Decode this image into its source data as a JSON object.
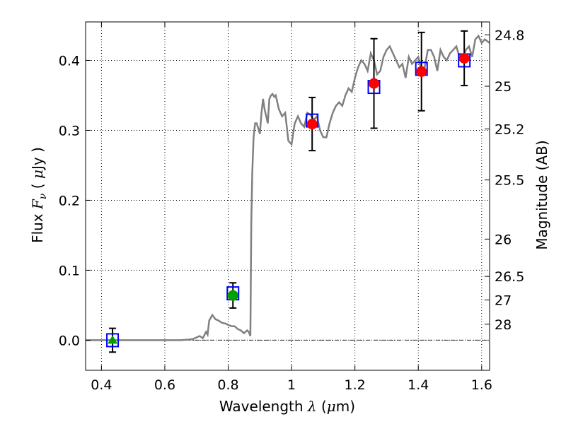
{
  "chart_data": {
    "type": "scatter",
    "xlabel": "Wavelength  λ (μm)",
    "ylabel": "Flux  Fν ( μJy )",
    "ylabel_right": "Magnitude (AB)",
    "xlim": [
      0.35,
      1.625
    ],
    "ylim": [
      -0.043,
      0.455
    ],
    "xticks": [
      0.4,
      0.6,
      0.8,
      1.0,
      1.2,
      1.4,
      1.6
    ],
    "xtick_labels": [
      "0.4",
      "0.6",
      "0.8",
      "1",
      "1.2",
      "1.4",
      "1.6"
    ],
    "yticks": [
      0.0,
      0.1,
      0.2,
      0.3,
      0.4
    ],
    "ytick_labels": [
      "0.0",
      "0.1",
      "0.2",
      "0.3",
      "0.4"
    ],
    "right_ticks": [
      {
        "label": "24.8",
        "mag": 24.8
      },
      {
        "label": "25",
        "mag": 25.0
      },
      {
        "label": "25.2",
        "mag": 25.2
      },
      {
        "label": "25.5",
        "mag": 25.5
      },
      {
        "label": "26",
        "mag": 26.0
      },
      {
        "label": "26.5",
        "mag": 26.5
      },
      {
        "label": "27",
        "mag": 27.0
      },
      {
        "label": "28",
        "mag": 28.0
      }
    ],
    "grid": true,
    "zero_line": true,
    "colors": {
      "model": "#808080",
      "red_points": "#ff0000",
      "green_points": "#00a000",
      "box_edge": "#0000ff",
      "errorbar": "#000000"
    },
    "model_spectrum": {
      "x": [
        0.35,
        0.5,
        0.6,
        0.65,
        0.68,
        0.69,
        0.7,
        0.71,
        0.72,
        0.73,
        0.735,
        0.74,
        0.75,
        0.76,
        0.77,
        0.78,
        0.79,
        0.8,
        0.81,
        0.82,
        0.83,
        0.84,
        0.85,
        0.86,
        0.865,
        0.87,
        0.873,
        0.876,
        0.88,
        0.885,
        0.89,
        0.9,
        0.905,
        0.91,
        0.915,
        0.92,
        0.925,
        0.93,
        0.935,
        0.94,
        0.945,
        0.95,
        0.96,
        0.97,
        0.98,
        0.99,
        1.0,
        1.01,
        1.02,
        1.03,
        1.04,
        1.05,
        1.06,
        1.07,
        1.08,
        1.09,
        1.1,
        1.11,
        1.12,
        1.13,
        1.14,
        1.15,
        1.16,
        1.17,
        1.18,
        1.19,
        1.2,
        1.21,
        1.22,
        1.23,
        1.24,
        1.25,
        1.26,
        1.27,
        1.28,
        1.29,
        1.3,
        1.31,
        1.32,
        1.33,
        1.34,
        1.35,
        1.36,
        1.37,
        1.38,
        1.39,
        1.4,
        1.41,
        1.42,
        1.43,
        1.44,
        1.45,
        1.46,
        1.47,
        1.48,
        1.49,
        1.5,
        1.51,
        1.52,
        1.53,
        1.54,
        1.55,
        1.56,
        1.57,
        1.58,
        1.59,
        1.6,
        1.61,
        1.625
      ],
      "y": [
        0.0,
        0.0,
        0.0,
        0.0,
        0.001,
        0.002,
        0.004,
        0.006,
        0.003,
        0.012,
        0.008,
        0.028,
        0.036,
        0.03,
        0.028,
        0.025,
        0.024,
        0.022,
        0.02,
        0.02,
        0.016,
        0.014,
        0.01,
        0.014,
        0.012,
        0.006,
        0.17,
        0.24,
        0.29,
        0.31,
        0.31,
        0.295,
        0.325,
        0.345,
        0.33,
        0.32,
        0.31,
        0.345,
        0.35,
        0.352,
        0.348,
        0.35,
        0.33,
        0.32,
        0.325,
        0.285,
        0.28,
        0.31,
        0.32,
        0.31,
        0.305,
        0.325,
        0.322,
        0.315,
        0.32,
        0.3,
        0.29,
        0.29,
        0.31,
        0.325,
        0.335,
        0.34,
        0.335,
        0.35,
        0.36,
        0.355,
        0.375,
        0.39,
        0.4,
        0.395,
        0.385,
        0.41,
        0.4,
        0.38,
        0.385,
        0.405,
        0.415,
        0.42,
        0.41,
        0.4,
        0.39,
        0.395,
        0.375,
        0.405,
        0.395,
        0.4,
        0.405,
        0.385,
        0.39,
        0.415,
        0.415,
        0.405,
        0.385,
        0.415,
        0.405,
        0.4,
        0.41,
        0.415,
        0.42,
        0.405,
        0.4,
        0.415,
        0.42,
        0.405,
        0.43,
        0.435,
        0.425,
        0.43,
        0.425
      ]
    },
    "photometry": [
      {
        "x": 0.435,
        "y": 0.0,
        "err": 0.017,
        "box": 0.0,
        "marker": "triangle",
        "color": "green"
      },
      {
        "x": 0.815,
        "y": 0.064,
        "err": 0.018,
        "box": 0.067,
        "marker": "circle",
        "color": "green"
      },
      {
        "x": 1.065,
        "y": 0.309,
        "err": 0.038,
        "box": 0.314,
        "marker": "circle",
        "color": "red"
      },
      {
        "x": 1.26,
        "y": 0.367,
        "err": 0.064,
        "box": 0.362,
        "marker": "circle",
        "color": "red"
      },
      {
        "x": 1.41,
        "y": 0.384,
        "err": 0.056,
        "box": 0.388,
        "marker": "circle",
        "color": "red"
      },
      {
        "x": 1.545,
        "y": 0.403,
        "err": 0.039,
        "box": 0.4,
        "marker": "circle",
        "color": "red"
      }
    ]
  }
}
